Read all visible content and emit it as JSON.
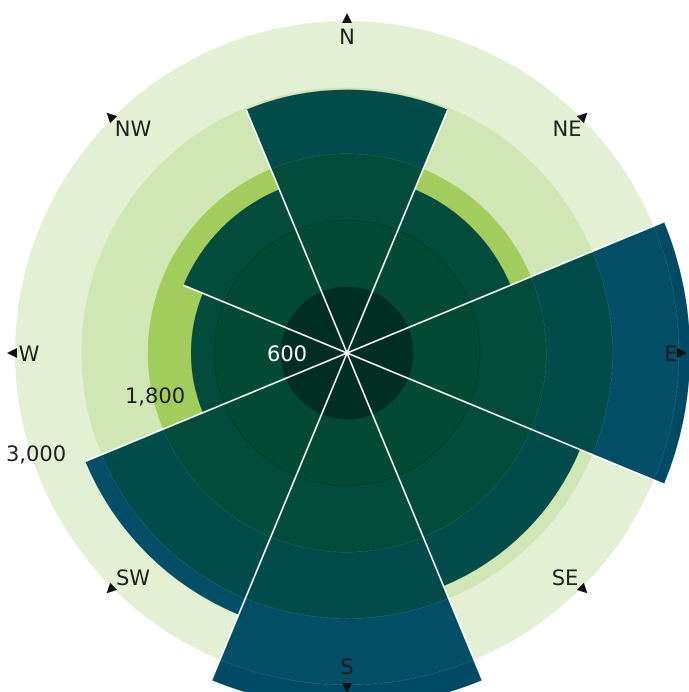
{
  "chart_data": {
    "type": "polar-bar",
    "title": "",
    "directions": [
      "N",
      "NE",
      "E",
      "SE",
      "S",
      "SW",
      "W",
      "NW"
    ],
    "radial_max": 3000,
    "ring_labels": [
      {
        "value": 600,
        "text": "600"
      },
      {
        "value": 1800,
        "text": "1,800"
      },
      {
        "value": 3000,
        "text": "3,000"
      }
    ],
    "rings": [
      {
        "value": 600,
        "color": "#002e22"
      },
      {
        "value": 1200,
        "color": "#024a33"
      },
      {
        "value": 1800,
        "color": "#a2cc5c"
      },
      {
        "value": 2400,
        "color": "#d0e6b4"
      },
      {
        "value": 3000,
        "color": "#e3f0d3"
      }
    ],
    "sectors": [
      {
        "direction": "N",
        "value": 2380
      },
      {
        "direction": "NE",
        "value": 1600
      },
      {
        "direction": "E",
        "value": 3100
      },
      {
        "direction": "SE",
        "value": 2280
      },
      {
        "direction": "S",
        "value": 3200
      },
      {
        "direction": "SW",
        "value": 2560
      },
      {
        "direction": "W",
        "value": 1410
      },
      {
        "direction": "NW",
        "value": 1600
      }
    ],
    "band_colors": [
      {
        "upto": 1200,
        "color": "#024a33"
      },
      {
        "upto": 1800,
        "color": "#034c3c"
      },
      {
        "upto": 2400,
        "color": "#024b4b"
      },
      {
        "upto": 3000,
        "color": "#014e66"
      },
      {
        "upto": 99999,
        "color": "#014a66"
      }
    ],
    "colors": {
      "separator": "#ffffff",
      "arrow": "#111111"
    }
  }
}
